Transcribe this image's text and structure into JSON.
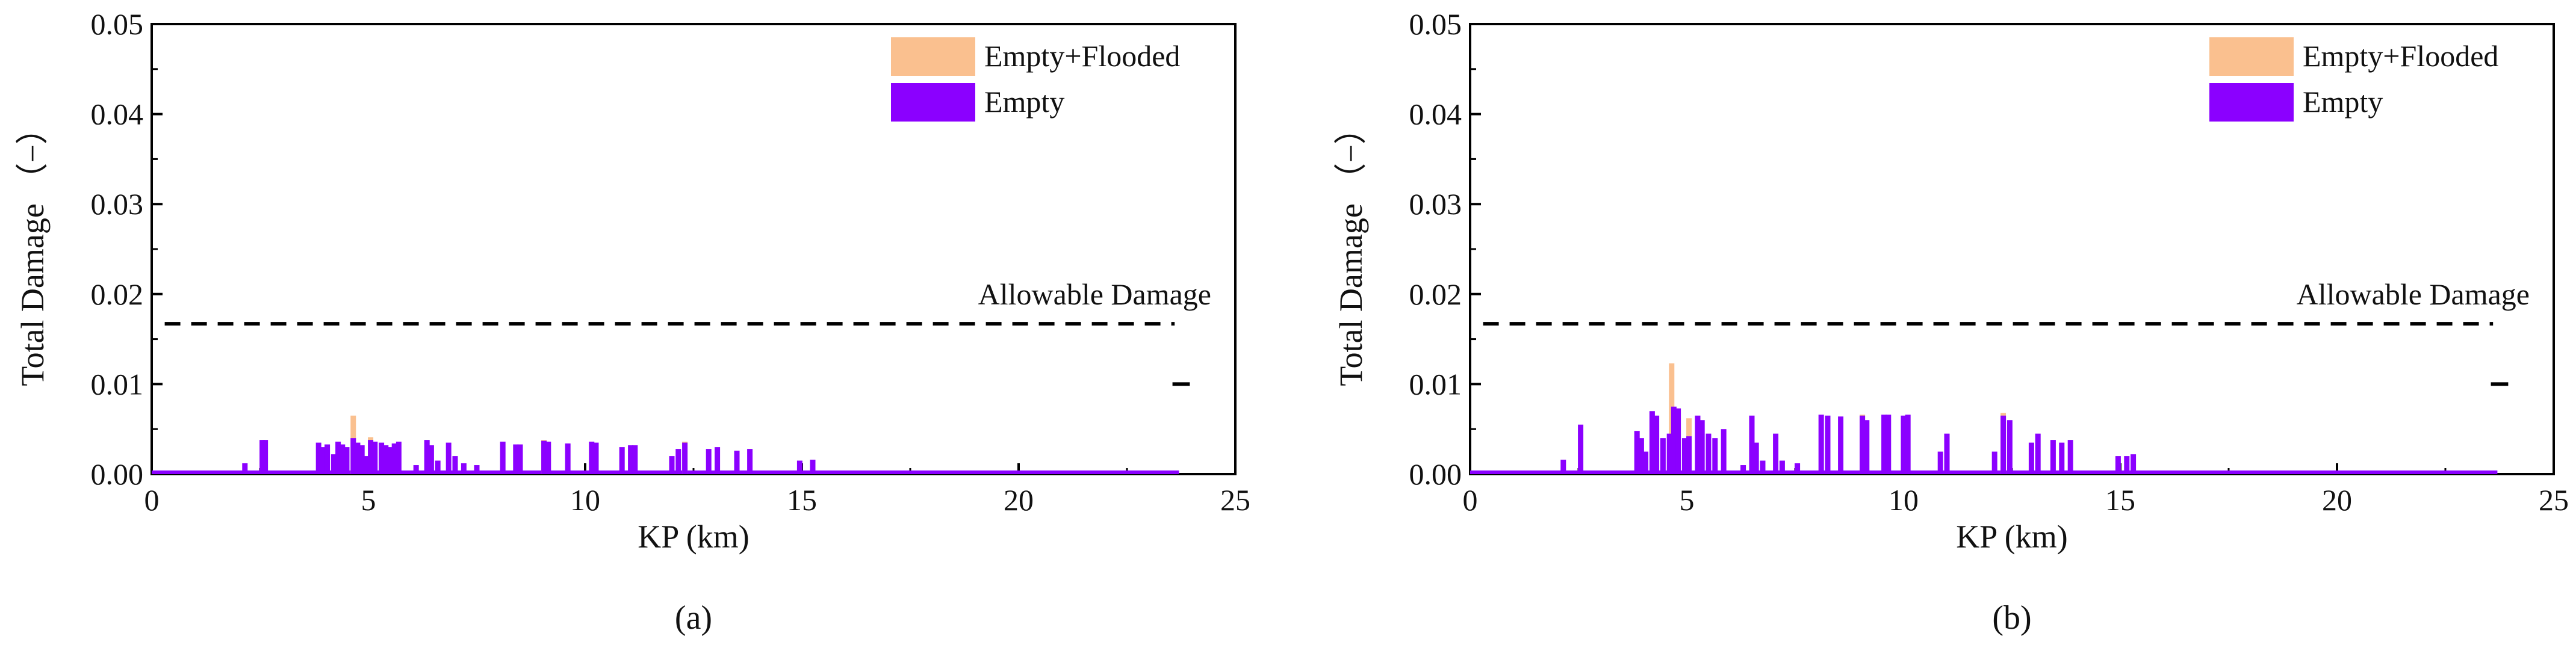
{
  "chart_data": [
    {
      "type": "bar",
      "caption": "(a)",
      "xlabel": "KP (km)",
      "ylabel": "Total Damage （−）",
      "xlim": [
        0,
        25
      ],
      "ylim": [
        0,
        0.05
      ],
      "xticks": [
        "0",
        "5",
        "10",
        "15",
        "20",
        "25"
      ],
      "yticks": [
        "0.00",
        "0.01",
        "0.02",
        "0.03",
        "0.04",
        "0.05"
      ],
      "grid": false,
      "legend_position": "top-right",
      "allowable_damage": {
        "label": "Allowable Damage",
        "value": 0.0167,
        "x_end": 23.6
      },
      "series": [
        {
          "name": "Empty+Flooded",
          "color": "#fac08f",
          "points": [
            [
              4.65,
              0.0065
            ],
            [
              5.05,
              0.0041
            ],
            [
              9.05,
              0.0038
            ],
            [
              12.3,
              0.0036
            ]
          ]
        },
        {
          "name": "Empty",
          "color": "#8b00ff",
          "points": [
            [
              2.15,
              0.0012
            ],
            [
              2.55,
              0.0038
            ],
            [
              2.62,
              0.0038
            ],
            [
              3.85,
              0.0035
            ],
            [
              3.95,
              0.003
            ],
            [
              4.05,
              0.0033
            ],
            [
              4.2,
              0.0022
            ],
            [
              4.3,
              0.0036
            ],
            [
              4.4,
              0.0033
            ],
            [
              4.5,
              0.003
            ],
            [
              4.65,
              0.004
            ],
            [
              4.75,
              0.0035
            ],
            [
              4.85,
              0.0032
            ],
            [
              4.95,
              0.002
            ],
            [
              5.05,
              0.0038
            ],
            [
              5.15,
              0.0036
            ],
            [
              5.3,
              0.0035
            ],
            [
              5.4,
              0.0032
            ],
            [
              5.5,
              0.003
            ],
            [
              5.6,
              0.0034
            ],
            [
              5.7,
              0.0036
            ],
            [
              6.1,
              0.001
            ],
            [
              6.35,
              0.0038
            ],
            [
              6.45,
              0.0032
            ],
            [
              6.6,
              0.0015
            ],
            [
              6.85,
              0.0035
            ],
            [
              7.0,
              0.002
            ],
            [
              7.2,
              0.0012
            ],
            [
              7.5,
              0.001
            ],
            [
              8.1,
              0.0036
            ],
            [
              8.4,
              0.0033
            ],
            [
              8.5,
              0.0033
            ],
            [
              9.05,
              0.0037
            ],
            [
              9.15,
              0.0036
            ],
            [
              9.6,
              0.0034
            ],
            [
              10.15,
              0.0036
            ],
            [
              10.25,
              0.0035
            ],
            [
              10.85,
              0.003
            ],
            [
              11.05,
              0.0032
            ],
            [
              11.15,
              0.0032
            ],
            [
              12.0,
              0.002
            ],
            [
              12.15,
              0.0028
            ],
            [
              12.3,
              0.0035
            ],
            [
              12.85,
              0.0028
            ],
            [
              13.05,
              0.003
            ],
            [
              13.5,
              0.0026
            ],
            [
              13.8,
              0.0028
            ],
            [
              14.95,
              0.0015
            ],
            [
              15.25,
              0.0016
            ]
          ]
        }
      ]
    },
    {
      "type": "bar",
      "caption": "(b)",
      "xlabel": "KP (km)",
      "ylabel": "Total Damage （−）",
      "xlim": [
        0,
        25
      ],
      "ylim": [
        0,
        0.05
      ],
      "xticks": [
        "0",
        "5",
        "10",
        "15",
        "20",
        "25"
      ],
      "yticks": [
        "0.00",
        "0.01",
        "0.02",
        "0.03",
        "0.04",
        "0.05"
      ],
      "grid": false,
      "legend_position": "top-right",
      "allowable_damage": {
        "label": "Allowable Damage",
        "value": 0.0167,
        "x_end": 23.6
      },
      "series": [
        {
          "name": "Empty+Flooded",
          "color": "#fac08f",
          "points": [
            [
              4.65,
              0.0123
            ],
            [
              5.05,
              0.0062
            ],
            [
              9.05,
              0.0066
            ],
            [
              12.3,
              0.0068
            ]
          ]
        },
        {
          "name": "Empty",
          "color": "#8b00ff",
          "points": [
            [
              2.15,
              0.0016
            ],
            [
              2.55,
              0.0055
            ],
            [
              3.85,
              0.0048
            ],
            [
              3.95,
              0.004
            ],
            [
              4.05,
              0.0025
            ],
            [
              4.2,
              0.007
            ],
            [
              4.3,
              0.0065
            ],
            [
              4.45,
              0.004
            ],
            [
              4.6,
              0.0045
            ],
            [
              4.7,
              0.0075
            ],
            [
              4.8,
              0.0073
            ],
            [
              4.95,
              0.004
            ],
            [
              5.05,
              0.0042
            ],
            [
              5.25,
              0.0065
            ],
            [
              5.35,
              0.006
            ],
            [
              5.5,
              0.0045
            ],
            [
              5.65,
              0.004
            ],
            [
              5.85,
              0.005
            ],
            [
              6.3,
              0.001
            ],
            [
              6.5,
              0.0065
            ],
            [
              6.6,
              0.0035
            ],
            [
              6.75,
              0.0015
            ],
            [
              7.05,
              0.0045
            ],
            [
              7.2,
              0.0015
            ],
            [
              7.55,
              0.0012
            ],
            [
              8.1,
              0.0066
            ],
            [
              8.25,
              0.0065
            ],
            [
              8.55,
              0.0064
            ],
            [
              9.05,
              0.0065
            ],
            [
              9.15,
              0.006
            ],
            [
              9.55,
              0.0066
            ],
            [
              9.65,
              0.0066
            ],
            [
              10.0,
              0.0065
            ],
            [
              10.1,
              0.0066
            ],
            [
              10.85,
              0.0025
            ],
            [
              11.0,
              0.0045
            ],
            [
              12.1,
              0.0025
            ],
            [
              12.3,
              0.0065
            ],
            [
              12.45,
              0.006
            ],
            [
              12.95,
              0.0035
            ],
            [
              13.1,
              0.0045
            ],
            [
              13.45,
              0.0038
            ],
            [
              13.65,
              0.0035
            ],
            [
              13.85,
              0.0038
            ],
            [
              14.95,
              0.002
            ],
            [
              15.15,
              0.002
            ],
            [
              15.3,
              0.0022
            ]
          ]
        }
      ]
    }
  ]
}
